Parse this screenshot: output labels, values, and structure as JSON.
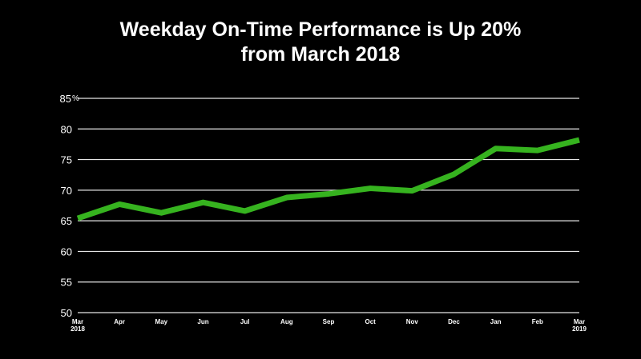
{
  "chart_data": {
    "type": "line",
    "title_line1": "Weekday On-Time Performance is Up 20%",
    "title_line2": "from March 2018",
    "categories": [
      "Mar 2018",
      "Apr",
      "May",
      "Jun",
      "Jul",
      "Aug",
      "Sep",
      "Oct",
      "Nov",
      "Dec",
      "Jan",
      "Feb",
      "Mar 2019"
    ],
    "x_tick_labels": [
      [
        "Mar",
        "2018"
      ],
      [
        "Apr"
      ],
      [
        "May"
      ],
      [
        "Jun"
      ],
      [
        "Jul"
      ],
      [
        "Aug"
      ],
      [
        "Sep"
      ],
      [
        "Oct"
      ],
      [
        "Nov"
      ],
      [
        "Dec"
      ],
      [
        "Jan"
      ],
      [
        "Feb"
      ],
      [
        "Mar",
        "2019"
      ]
    ],
    "series": [
      {
        "values": [
          65.4,
          67.7,
          66.3,
          68.0,
          66.6,
          68.8,
          69.4,
          70.3,
          69.9,
          72.6,
          76.8,
          76.5,
          78.2
        ]
      }
    ],
    "y_ticks": [
      50,
      55,
      60,
      65,
      70,
      75,
      80,
      85
    ],
    "y_unit": "%",
    "ylim": [
      50,
      85
    ],
    "grid": true,
    "colors": {
      "background": "#000000",
      "line": "#36b31f",
      "grid": "#e6e6e6",
      "text": "#ffffff"
    }
  }
}
